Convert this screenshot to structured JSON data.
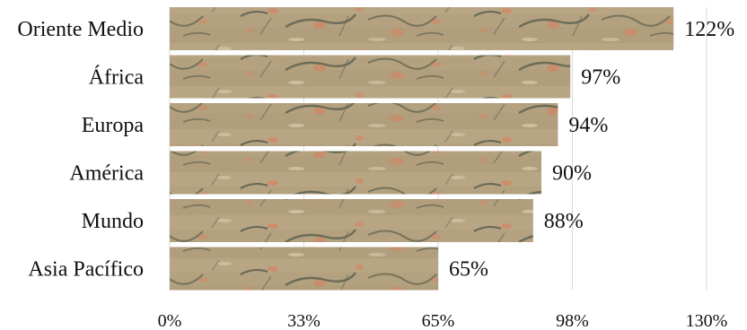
{
  "chart_data": {
    "type": "bar",
    "orientation": "horizontal",
    "categories": [
      "Oriente Medio",
      "África",
      "Europa",
      "América",
      "Mundo",
      "Asia Pacífico"
    ],
    "values": [
      122,
      97,
      94,
      90,
      88,
      65
    ],
    "value_labels": [
      "122%",
      "97%",
      "94%",
      "90%",
      "88%",
      "65%"
    ],
    "xlim": [
      0,
      130
    ],
    "xticks": [
      0,
      32.5,
      65,
      97.5,
      130
    ],
    "xtick_labels": [
      "0%",
      "33%",
      "65%",
      "98%",
      "130%"
    ],
    "grid": "vertical",
    "bar_fill": "textured sandstone",
    "colors": {
      "bar_base": "#b3a17f",
      "bar_stroke": "#4e5546",
      "bar_spot": "#d58562",
      "grid": "#d9d9d9"
    }
  }
}
